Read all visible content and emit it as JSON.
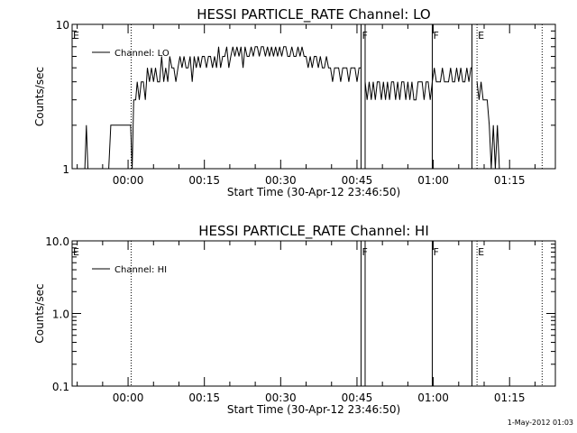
{
  "chart_data": [
    {
      "type": "line",
      "title": "HESSI PARTICLE_RATE Channel: LO",
      "xlabel": "Start Time (30-Apr-12 23:46:50)",
      "ylabel": "Counts/sec",
      "yscale": "log",
      "ylim": [
        1,
        10
      ],
      "ytick_values": [
        1,
        10
      ],
      "ytick_labels": [
        "1",
        "10"
      ],
      "xlim_minutes": [
        -11,
        84
      ],
      "xtick_values": [
        0,
        15,
        30,
        45,
        60,
        75
      ],
      "xtick_labels": [
        "00:00",
        "00:15",
        "00:30",
        "00:45",
        "01:00",
        "01:15"
      ],
      "legend": "Channel: LO",
      "vlines": [
        {
          "t": 0.6,
          "style": "dotted"
        },
        {
          "t": 45.8,
          "style": "solid"
        },
        {
          "t": 46.6,
          "style": "solid"
        },
        {
          "t": 59.8,
          "style": "solid"
        },
        {
          "t": 67.6,
          "style": "solid"
        },
        {
          "t": 68.6,
          "style": "dotted"
        },
        {
          "t": 81.4,
          "style": "dotted"
        }
      ],
      "markers": [
        {
          "t": -11,
          "label": "E"
        },
        {
          "t": 45.8,
          "label": "F"
        },
        {
          "t": 59.8,
          "label": "F"
        },
        {
          "t": 68.6,
          "label": "E"
        }
      ],
      "series": [
        {
          "name": "Channel: LO",
          "segments": [
            [
              [
                -8.5,
                1
              ],
              [
                -8.2,
                2
              ],
              [
                -7.9,
                1
              ]
            ],
            [
              [
                -3.8,
                1
              ],
              [
                -3.4,
                2
              ],
              [
                0.5,
                2
              ],
              [
                0.8,
                1
              ],
              [
                1.1,
                3
              ],
              [
                1.5,
                3
              ],
              [
                1.8,
                4
              ],
              [
                2.2,
                3
              ],
              [
                2.6,
                4
              ],
              [
                3,
                4
              ],
              [
                3.4,
                3
              ],
              [
                3.8,
                5
              ],
              [
                4.2,
                4
              ],
              [
                4.6,
                5
              ],
              [
                5,
                4
              ],
              [
                5.4,
                5
              ],
              [
                5.8,
                4
              ],
              [
                6.2,
                4
              ],
              [
                6.6,
                6
              ],
              [
                7,
                4
              ],
              [
                7.4,
                5
              ],
              [
                7.8,
                4
              ],
              [
                8.2,
                6
              ],
              [
                8.6,
                5
              ],
              [
                9,
                5
              ],
              [
                9.4,
                4
              ],
              [
                9.8,
                5
              ],
              [
                10.2,
                6
              ],
              [
                10.6,
                5
              ],
              [
                11,
                6
              ],
              [
                11.4,
                5
              ],
              [
                11.8,
                5
              ],
              [
                12.2,
                6
              ],
              [
                12.6,
                4
              ],
              [
                13,
                6
              ],
              [
                13.4,
                5
              ],
              [
                13.8,
                6
              ],
              [
                14.2,
                5
              ],
              [
                14.6,
                6
              ],
              [
                15,
                6
              ],
              [
                15.4,
                5
              ],
              [
                15.8,
                6
              ],
              [
                16.2,
                6
              ],
              [
                16.6,
                5
              ],
              [
                17,
                6
              ],
              [
                17.4,
                5
              ],
              [
                17.8,
                7
              ],
              [
                18.2,
                5
              ],
              [
                18.6,
                6
              ],
              [
                19,
                6
              ],
              [
                19.4,
                7
              ],
              [
                19.8,
                5
              ],
              [
                20.2,
                6
              ],
              [
                20.6,
                7
              ],
              [
                21,
                6
              ],
              [
                21.4,
                7
              ],
              [
                21.8,
                6
              ],
              [
                22.2,
                7
              ],
              [
                22.6,
                5
              ],
              [
                23,
                7
              ],
              [
                23.4,
                6
              ],
              [
                23.8,
                6
              ],
              [
                24.2,
                7
              ],
              [
                24.6,
                6
              ],
              [
                25,
                7
              ],
              [
                25.4,
                7
              ],
              [
                25.8,
                6
              ],
              [
                26.2,
                7
              ],
              [
                26.6,
                7
              ],
              [
                27,
                6
              ],
              [
                27.4,
                7
              ],
              [
                27.8,
                6
              ],
              [
                28.2,
                7
              ],
              [
                28.6,
                6
              ],
              [
                29,
                7
              ],
              [
                29.4,
                6
              ],
              [
                29.8,
                7
              ],
              [
                30.2,
                6
              ],
              [
                30.6,
                7
              ],
              [
                31,
                7
              ],
              [
                31.4,
                6
              ],
              [
                31.8,
                6
              ],
              [
                32.2,
                7
              ],
              [
                32.6,
                6
              ],
              [
                33,
                6
              ],
              [
                33.4,
                7
              ],
              [
                33.8,
                6
              ],
              [
                34.2,
                7
              ],
              [
                34.6,
                6
              ],
              [
                35,
                6
              ],
              [
                35.4,
                5
              ],
              [
                35.8,
                6
              ],
              [
                36.2,
                5
              ],
              [
                36.6,
                6
              ],
              [
                37,
                6
              ],
              [
                37.4,
                5
              ],
              [
                37.8,
                6
              ],
              [
                38.2,
                5
              ],
              [
                38.6,
                5
              ],
              [
                39,
                6
              ],
              [
                39.4,
                5
              ],
              [
                39.8,
                5
              ],
              [
                40.2,
                4
              ],
              [
                40.6,
                5
              ],
              [
                41,
                5
              ],
              [
                41.4,
                5
              ],
              [
                41.8,
                4
              ],
              [
                42.2,
                5
              ],
              [
                42.6,
                5
              ],
              [
                43,
                5
              ],
              [
                43.4,
                4
              ],
              [
                43.8,
                5
              ],
              [
                44.2,
                5
              ],
              [
                44.6,
                5
              ],
              [
                45,
                4
              ],
              [
                45.4,
                5
              ],
              [
                45.8,
                5
              ]
            ],
            [
              [
                46.6,
                4
              ],
              [
                47,
                3
              ],
              [
                47.4,
                4
              ],
              [
                47.8,
                3
              ],
              [
                48.2,
                4
              ],
              [
                48.6,
                3
              ],
              [
                49,
                4
              ],
              [
                49.4,
                4
              ],
              [
                49.8,
                3
              ],
              [
                50.2,
                4
              ],
              [
                50.6,
                3
              ],
              [
                51,
                4
              ],
              [
                51.4,
                3
              ],
              [
                51.8,
                4
              ],
              [
                52.2,
                4
              ],
              [
                52.6,
                3
              ],
              [
                53,
                4
              ],
              [
                53.4,
                3
              ],
              [
                53.8,
                4
              ],
              [
                54.2,
                4
              ],
              [
                54.6,
                3
              ],
              [
                55,
                4
              ],
              [
                55.4,
                3
              ],
              [
                55.8,
                4
              ],
              [
                56.2,
                3
              ],
              [
                56.6,
                3
              ],
              [
                57,
                4
              ],
              [
                57.4,
                4
              ],
              [
                57.8,
                4
              ],
              [
                58.2,
                3
              ],
              [
                58.6,
                4
              ],
              [
                59,
                4
              ],
              [
                59.4,
                3
              ],
              [
                59.8,
                4
              ],
              [
                60.2,
                5
              ],
              [
                60.6,
                4
              ],
              [
                61,
                4
              ],
              [
                61.4,
                4
              ],
              [
                61.8,
                5
              ],
              [
                62.2,
                4
              ],
              [
                62.6,
                4
              ],
              [
                63,
                4
              ],
              [
                63.4,
                5
              ],
              [
                63.8,
                4
              ],
              [
                64.2,
                4
              ],
              [
                64.6,
                5
              ],
              [
                65,
                4
              ],
              [
                65.4,
                5
              ],
              [
                65.8,
                4
              ],
              [
                66.2,
                4
              ],
              [
                66.6,
                5
              ],
              [
                67,
                4
              ],
              [
                67.4,
                5
              ],
              [
                67.6,
                5
              ]
            ],
            [
              [
                68.6,
                4
              ],
              [
                69,
                3
              ],
              [
                69.4,
                4
              ],
              [
                69.8,
                3
              ],
              [
                70.2,
                3
              ],
              [
                70.6,
                3
              ],
              [
                71,
                2
              ],
              [
                71.4,
                1
              ],
              [
                71.8,
                2
              ],
              [
                72.2,
                1
              ],
              [
                72.6,
                2
              ],
              [
                73,
                1
              ]
            ]
          ]
        }
      ]
    },
    {
      "type": "line",
      "title": "HESSI PARTICLE_RATE Channel: HI",
      "xlabel": "Start Time (30-Apr-12 23:46:50)",
      "ylabel": "Counts/sec",
      "yscale": "log",
      "ylim": [
        0.1,
        10
      ],
      "ytick_values": [
        0.1,
        1,
        10
      ],
      "ytick_labels": [
        "0.1",
        "1.0",
        "10.0"
      ],
      "xlim_minutes": [
        -11,
        84
      ],
      "xtick_values": [
        0,
        15,
        30,
        45,
        60,
        75
      ],
      "xtick_labels": [
        "00:00",
        "00:15",
        "00:30",
        "00:45",
        "01:00",
        "01:15"
      ],
      "legend": "Channel: HI",
      "vlines": [
        {
          "t": 0.6,
          "style": "dotted"
        },
        {
          "t": 45.8,
          "style": "solid"
        },
        {
          "t": 46.6,
          "style": "solid"
        },
        {
          "t": 59.8,
          "style": "solid"
        },
        {
          "t": 67.6,
          "style": "solid"
        },
        {
          "t": 68.6,
          "style": "dotted"
        },
        {
          "t": 81.4,
          "style": "dotted"
        }
      ],
      "markers": [
        {
          "t": -11,
          "label": "E"
        },
        {
          "t": 45.8,
          "label": "F"
        },
        {
          "t": 59.8,
          "label": "F"
        },
        {
          "t": 68.6,
          "label": "E"
        }
      ],
      "series": [
        {
          "name": "Channel: HI",
          "segments": []
        }
      ]
    }
  ],
  "footer": {
    "timestamp": "1-May-2012 01:03"
  }
}
